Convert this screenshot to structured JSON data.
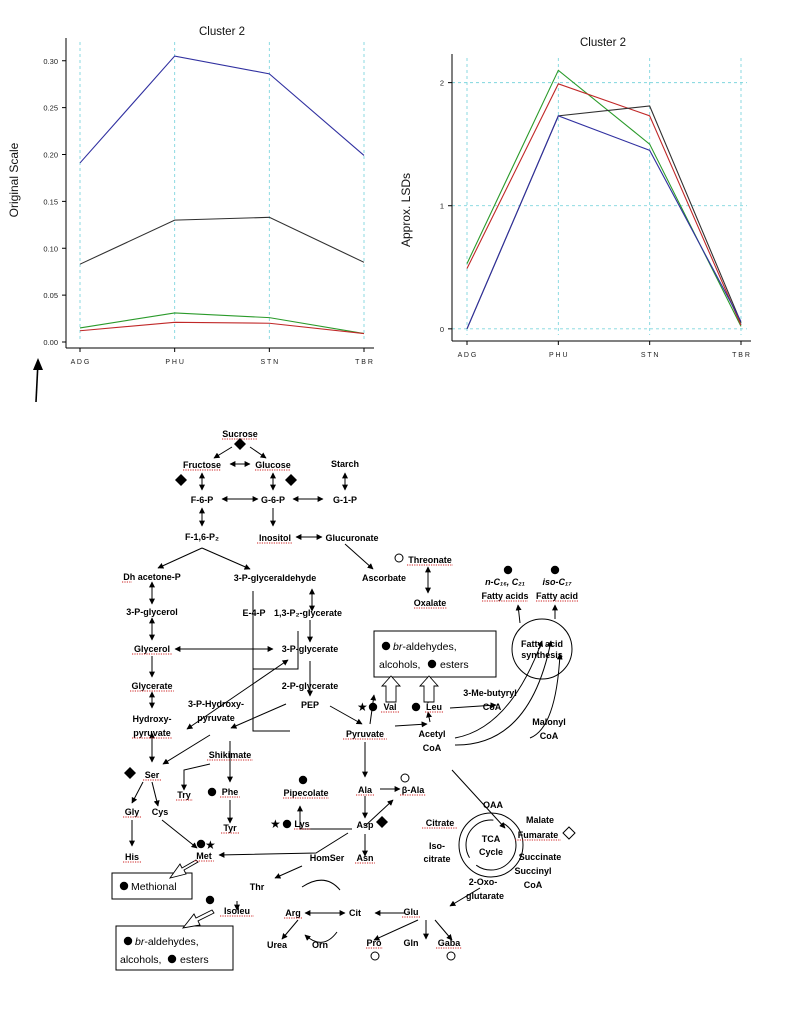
{
  "charts_text": {
    "left_ylabel": "Original Scale",
    "right_ylabel": "Approx. LSDs"
  },
  "chart_data": [
    {
      "type": "line",
      "title": "Cluster 2",
      "xlabel": "",
      "ylabel": "Original Scale",
      "categories": [
        "A D G",
        "P H U",
        "S T N",
        "T B R"
      ],
      "ylim": [
        0,
        0.32
      ],
      "yticks": [
        "0.00",
        "0.05",
        "0.10",
        "0.15",
        "0.20",
        "0.25",
        "0.30"
      ],
      "ytick_values": [
        0,
        0.05,
        0.1,
        0.15,
        0.2,
        0.25,
        0.3
      ],
      "grid": "vertical-dashed",
      "series": [
        {
          "color": "#3030a0",
          "values": [
            0.191,
            0.305,
            0.286,
            0.199
          ]
        },
        {
          "color": "#303030",
          "values": [
            0.083,
            0.13,
            0.133,
            0.085
          ]
        },
        {
          "color": "#2a9a2a",
          "values": [
            0.015,
            0.031,
            0.026,
            0.009
          ]
        },
        {
          "color": "#c02828",
          "values": [
            0.012,
            0.021,
            0.02,
            0.009
          ]
        }
      ]
    },
    {
      "type": "line",
      "title": "Cluster 2",
      "xlabel": "",
      "ylabel": "Approx. LSDs",
      "categories": [
        "A D G",
        "P H U",
        "S T N",
        "T B R"
      ],
      "ylim": [
        -0.05,
        2.2
      ],
      "yticks": [
        "0",
        "1",
        "2"
      ],
      "ytick_values": [
        0,
        1,
        2
      ],
      "grid": "dashed",
      "series": [
        {
          "color": "#2a9a2a",
          "values": [
            0.53,
            2.1,
            1.5,
            0.02
          ]
        },
        {
          "color": "#c02828",
          "values": [
            0.49,
            1.99,
            1.73,
            0.03
          ]
        },
        {
          "color": "#303030",
          "values": [
            0.0,
            1.73,
            1.81,
            0.05
          ]
        },
        {
          "color": "#3030a0",
          "values": [
            0.0,
            1.73,
            1.45,
            0.06
          ]
        }
      ]
    }
  ],
  "pathway": {
    "nodes": {
      "sucrose": "Sucrose",
      "fructose": "Fructose",
      "glucose": "Glucose",
      "starch": "Starch",
      "f6p": "F-6-P",
      "g6p": "G-6-P",
      "g1p": "G-1-P",
      "f16p2": "F-1,6-P₂",
      "inositol": "Inositol",
      "glucuronate": "Glucuronate",
      "threonate": "Threonate",
      "ascorbate": "Ascorbate",
      "oxalate": "Oxalate",
      "dhap": "Dh acetone-P",
      "pglyald": "3-P-glyceraldehyde",
      "pglycerol": "3-P-glycerol",
      "e4p": "E-4-P",
      "bpg": "1,3-P₂-glycerate",
      "glycerol": "Glycerol",
      "pglycerate3": "3-P-glycerate",
      "glycerate": "Glycerate",
      "pglycerate2": "2-P-glycerate",
      "php1": "3-P-Hydroxy-",
      "php2": "pyruvate",
      "hp1": "Hydroxy-",
      "hp2": "pyruvate",
      "pep": "PEP",
      "shikimate": "Shikimate",
      "ser": "Ser",
      "try": "Try",
      "phe": "Phe",
      "tyr": "Tyr",
      "gly": "Gly",
      "cys": "Cys",
      "his": "His",
      "met": "Met",
      "pyruvate": "Pyruvate",
      "acetyl1": "Acetyl",
      "acetyl2": "CoA",
      "val": "Val",
      "leu": "Leu",
      "mebut1": "3-Me-butyryl",
      "mebut2": "CoA",
      "malonyl1": "Malonyl",
      "malonyl2": "CoA",
      "pipecolate": "Pipecolate",
      "ala": "Ala",
      "bala": "β-Ala",
      "lys": "Lys",
      "asp": "Asp",
      "asn": "Asn",
      "homser": "HomSer",
      "thr": "Thr",
      "isoleu": "Isoleu",
      "oaa": "OAA",
      "citrate": "Citrate",
      "malate": "Malate",
      "fumarate": "Fumarate",
      "isocit1": "Iso-",
      "isocit2": "citrate",
      "succinate": "Succinate",
      "succoa1": "Succinyl",
      "succoa2": "CoA",
      "oxo1": "2-Oxo-",
      "oxo2": "glutarate",
      "tca1": "TCA",
      "tca2": "Cycle",
      "arg": "Arg",
      "cit": "Cit",
      "glu": "Glu",
      "urea": "Urea",
      "orn": "Orn",
      "pro": "Pro",
      "gln": "Gln",
      "gaba": "Gaba",
      "fasyn1": "Fatty acid",
      "fasyn2": "synthesis",
      "fa1_name": "n-C₁₆, C₂₁",
      "fa1_label": "Fatty acids",
      "fa2_name": "iso-C₁₇",
      "fa2_label": "Fatty acid"
    },
    "boxes": {
      "top_pre": "br",
      "top_line1": "-aldehydes,",
      "top_line2a": "alcohols,",
      "top_line2b": "esters",
      "methional": "Methional",
      "bottom_pre": "br",
      "bottom_line1": "-aldehydes,",
      "bottom_line2a": "alcohols,",
      "bottom_line2b": "esters"
    }
  }
}
